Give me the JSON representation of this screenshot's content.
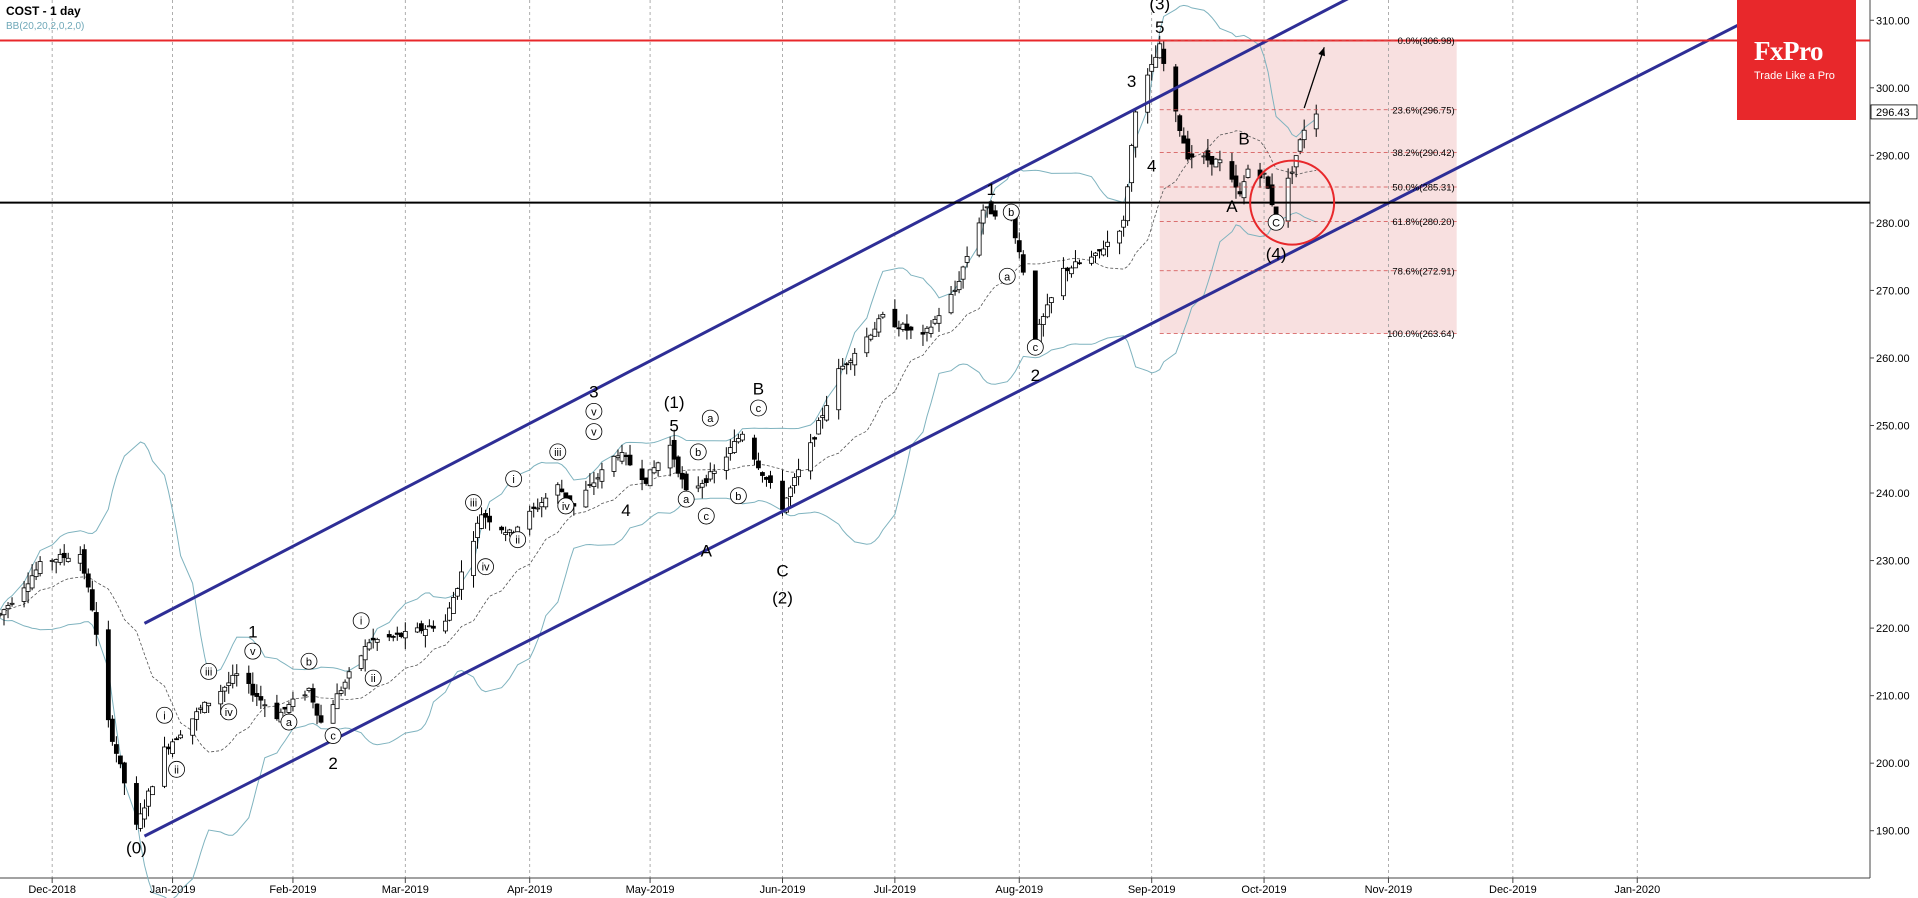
{
  "header": {
    "symbol_line": "COST  - 1 day",
    "indicator_line": "BB(20,20,2,0,2,0)"
  },
  "logo": {
    "name": "FxPro",
    "tagline": "Trade Like a Pro"
  },
  "colors": {
    "background": "#ffffff",
    "channel": "#2e2e96",
    "resistance": "#e8282b",
    "support": "#000000",
    "bollinger": "#7fb3bf",
    "fib_zone": "#f5d5d5",
    "fib_line": "#d04a4a",
    "candle_up": "#ffffff",
    "candle_down": "#000000",
    "arrow_up": "#1e8a1e",
    "arrow_down": "#c01818",
    "logo_bg": "#e8282b"
  },
  "chart_data": {
    "type": "candlestick",
    "symbol": "COST",
    "timeframe": "1 day",
    "ylim": [
      183,
      313
    ],
    "y_ticks": [
      190,
      200,
      210,
      220,
      230,
      240,
      250,
      260,
      270,
      280,
      290,
      300,
      310
    ],
    "y_tick_labels": [
      "190.00",
      "200.00",
      "210.00",
      "220.00",
      "230.00",
      "240.00",
      "250.00",
      "260.00",
      "270.00",
      "280.00",
      "290.00",
      "300.00",
      "310.00"
    ],
    "x_range": [
      "2018-11-20",
      "2020-02-29"
    ],
    "x_ticks": [
      {
        "label": "Dec-2018",
        "date": "2018-12-03"
      },
      {
        "label": "Jan-2019",
        "date": "2019-01-02"
      },
      {
        "label": "Feb-2019",
        "date": "2019-02-01"
      },
      {
        "label": "Mar-2019",
        "date": "2019-03-01"
      },
      {
        "label": "Apr-2019",
        "date": "2019-04-01"
      },
      {
        "label": "May-2019",
        "date": "2019-05-01"
      },
      {
        "label": "Jun-2019",
        "date": "2019-06-03"
      },
      {
        "label": "Jul-2019",
        "date": "2019-07-01"
      },
      {
        "label": "Aug-2019",
        "date": "2019-08-01"
      },
      {
        "label": "Sep-2019",
        "date": "2019-09-03"
      },
      {
        "label": "Oct-2019",
        "date": "2019-10-01"
      },
      {
        "label": "Nov-2019",
        "date": "2019-11-01"
      },
      {
        "label": "Dec-2019",
        "date": "2019-12-02"
      },
      {
        "label": "Jan-2020",
        "date": "2020-01-02"
      }
    ],
    "current_price": 296.43,
    "current_price_label": "296.43",
    "price_path": [
      {
        "date": "2018-11-20",
        "price": 222
      },
      {
        "date": "2018-12-01",
        "price": 230
      },
      {
        "date": "2018-12-10",
        "price": 231
      },
      {
        "date": "2018-12-13",
        "price": 223
      },
      {
        "date": "2018-12-17",
        "price": 206
      },
      {
        "date": "2018-12-24",
        "price": 190.5
      },
      {
        "date": "2018-12-31",
        "price": 202
      },
      {
        "date": "2019-01-09",
        "price": 208
      },
      {
        "date": "2019-01-18",
        "price": 213
      },
      {
        "date": "2019-01-28",
        "price": 207
      },
      {
        "date": "2019-02-05",
        "price": 211
      },
      {
        "date": "2019-02-08",
        "price": 206
      },
      {
        "date": "2019-02-14",
        "price": 212
      },
      {
        "date": "2019-02-20",
        "price": 218
      },
      {
        "date": "2019-03-01",
        "price": 219
      },
      {
        "date": "2019-03-11",
        "price": 221
      },
      {
        "date": "2019-03-20",
        "price": 237
      },
      {
        "date": "2019-03-27",
        "price": 234
      },
      {
        "date": "2019-04-08",
        "price": 241
      },
      {
        "date": "2019-04-12",
        "price": 238
      },
      {
        "date": "2019-04-23",
        "price": 246
      },
      {
        "date": "2019-04-30",
        "price": 242
      },
      {
        "date": "2019-05-06",
        "price": 247
      },
      {
        "date": "2019-05-10",
        "price": 240
      },
      {
        "date": "2019-05-17",
        "price": 243
      },
      {
        "date": "2019-05-24",
        "price": 249
      },
      {
        "date": "2019-05-29",
        "price": 243
      },
      {
        "date": "2019-06-03",
        "price": 238
      },
      {
        "date": "2019-06-10",
        "price": 247
      },
      {
        "date": "2019-06-17",
        "price": 258
      },
      {
        "date": "2019-06-28",
        "price": 266
      },
      {
        "date": "2019-07-08",
        "price": 263
      },
      {
        "date": "2019-07-16",
        "price": 270
      },
      {
        "date": "2019-07-23",
        "price": 282
      },
      {
        "date": "2019-07-30",
        "price": 281
      },
      {
        "date": "2019-08-02",
        "price": 273
      },
      {
        "date": "2019-08-05",
        "price": 263
      },
      {
        "date": "2019-08-12",
        "price": 273
      },
      {
        "date": "2019-08-20",
        "price": 275
      },
      {
        "date": "2019-08-27",
        "price": 280
      },
      {
        "date": "2019-08-30",
        "price": 297
      },
      {
        "date": "2019-09-05",
        "price": 306
      },
      {
        "date": "2019-09-09",
        "price": 296
      },
      {
        "date": "2019-09-12",
        "price": 290
      },
      {
        "date": "2019-09-20",
        "price": 289
      },
      {
        "date": "2019-09-25",
        "price": 284
      },
      {
        "date": "2019-09-27",
        "price": 288
      },
      {
        "date": "2019-10-01",
        "price": 287
      },
      {
        "date": "2019-10-04",
        "price": 281
      },
      {
        "date": "2019-10-08",
        "price": 288
      },
      {
        "date": "2019-10-11",
        "price": 294
      },
      {
        "date": "2019-10-14",
        "price": 296.43
      }
    ],
    "upward_channel": {
      "upper": [
        {
          "date": "2018-12-26",
          "price": 220.7
        },
        {
          "date": "2019-11-12",
          "price": 319.7
        }
      ],
      "lower": [
        {
          "date": "2018-12-26",
          "price": 189.2
        },
        {
          "date": "2020-02-20",
          "price": 316.5
        }
      ]
    },
    "resistance_level": 307,
    "support_level": 283,
    "fibonacci": {
      "from_date": "2019-09-05",
      "to_date": "2019-11-18",
      "levels": [
        {
          "ratio": "0.0%",
          "price": 306.98,
          "label": "0.0%(306.98)"
        },
        {
          "ratio": "23.6%",
          "price": 296.75,
          "label": "23.6%(296.75)"
        },
        {
          "ratio": "38.2%",
          "price": 290.42,
          "label": "38.2%(290.42)"
        },
        {
          "ratio": "50.0%",
          "price": 285.31,
          "label": "50.0%(285.31)"
        },
        {
          "ratio": "61.8%",
          "price": 280.2,
          "label": "61.8%(280.20)"
        },
        {
          "ratio": "78.6%",
          "price": 272.91,
          "label": "78.6%(272.91)"
        },
        {
          "ratio": "100.0%",
          "price": 263.64,
          "label": "100.0%(263.64)"
        }
      ]
    },
    "projection_arrow": {
      "from": {
        "date": "2019-10-11",
        "price": 297
      },
      "to": {
        "date": "2019-10-16",
        "price": 306
      }
    },
    "highlight_circle": {
      "date": "2019-10-08",
      "price": 283
    },
    "wave_labels": [
      {
        "text": "(0)",
        "date": "2018-12-24",
        "price": 187.5
      },
      {
        "text": "i",
        "circled": true,
        "date": "2018-12-31",
        "price": 206.5
      },
      {
        "text": "ii",
        "circled": true,
        "date": "2019-01-03",
        "price": 198.5
      },
      {
        "text": "iii",
        "circled": true,
        "date": "2019-01-11",
        "price": 213
      },
      {
        "text": "iv",
        "circled": true,
        "date": "2019-01-16",
        "price": 207
      },
      {
        "text": "v",
        "circled": true,
        "date": "2019-01-22",
        "price": 216
      },
      {
        "text": "1",
        "date": "2019-01-22",
        "price": 219.5
      },
      {
        "text": "a",
        "circled": true,
        "date": "2019-01-31",
        "price": 205.5
      },
      {
        "text": "b",
        "circled": true,
        "date": "2019-02-05",
        "price": 214.5
      },
      {
        "text": "c",
        "circled": true,
        "date": "2019-02-11",
        "price": 203.5
      },
      {
        "text": "2",
        "date": "2019-02-11",
        "price": 200
      },
      {
        "text": "i",
        "circled": true,
        "date": "2019-02-18",
        "price": 220.5
      },
      {
        "text": "ii",
        "circled": true,
        "date": "2019-02-21",
        "price": 212
      },
      {
        "text": "iii",
        "circled": true,
        "date": "2019-03-18",
        "price": 238
      },
      {
        "text": "iv",
        "circled": true,
        "date": "2019-03-21",
        "price": 228.5
      },
      {
        "text": "i",
        "circled": true,
        "date": "2019-03-28",
        "price": 241.5
      },
      {
        "text": "ii",
        "circled": true,
        "date": "2019-03-29",
        "price": 232.5
      },
      {
        "text": "iii",
        "circled": true,
        "date": "2019-04-08",
        "price": 245.5
      },
      {
        "text": "iv",
        "circled": true,
        "date": "2019-04-10",
        "price": 237.5
      },
      {
        "text": "v",
        "circled": true,
        "date": "2019-04-17",
        "price": 248.5
      },
      {
        "text": "v",
        "circled": true,
        "date": "2019-04-17",
        "price": 251.5
      },
      {
        "text": "3",
        "date": "2019-04-17",
        "price": 255
      },
      {
        "text": "4",
        "date": "2019-04-25",
        "price": 237.5
      },
      {
        "text": "5",
        "date": "2019-05-07",
        "price": 250
      },
      {
        "text": "(1)",
        "date": "2019-05-07",
        "price": 253.5
      },
      {
        "text": "a",
        "circled": true,
        "date": "2019-05-10",
        "price": 238.5
      },
      {
        "text": "b",
        "circled": true,
        "date": "2019-05-13",
        "price": 245.5
      },
      {
        "text": "c",
        "circled": true,
        "date": "2019-05-15",
        "price": 236
      },
      {
        "text": "a",
        "circled": true,
        "date": "2019-05-16",
        "price": 250.5
      },
      {
        "text": "b",
        "circled": true,
        "date": "2019-05-23",
        "price": 239
      },
      {
        "text": "c",
        "circled": true,
        "date": "2019-05-28",
        "price": 252
      },
      {
        "text": "B",
        "date": "2019-05-28",
        "price": 255.5
      },
      {
        "text": "A",
        "date": "2019-05-15",
        "price": 231.5
      },
      {
        "text": "C",
        "date": "2019-06-03",
        "price": 228.5
      },
      {
        "text": "(2)",
        "date": "2019-06-03",
        "price": 224.5
      },
      {
        "text": "1",
        "date": "2019-07-25",
        "price": 285
      },
      {
        "text": "b",
        "circled": true,
        "date": "2019-07-30",
        "price": 281
      },
      {
        "text": "a",
        "circled": true,
        "date": "2019-07-29",
        "price": 271.5
      },
      {
        "text": "c",
        "circled": true,
        "date": "2019-08-05",
        "price": 261
      },
      {
        "text": "2",
        "date": "2019-08-05",
        "price": 257.5
      },
      {
        "text": "3",
        "date": "2019-08-29",
        "price": 301
      },
      {
        "text": "4",
        "date": "2019-09-03",
        "price": 288.5
      },
      {
        "text": "5",
        "date": "2019-09-05",
        "price": 309
      },
      {
        "text": "(3)",
        "date": "2019-09-05",
        "price": 312.5
      },
      {
        "text": "A",
        "date": "2019-09-23",
        "price": 282.5
      },
      {
        "text": "B",
        "date": "2019-09-26",
        "price": 292.5
      },
      {
        "text": "C",
        "circled": true,
        "date": "2019-10-04",
        "price": 279.5
      },
      {
        "text": "(4)",
        "date": "2019-10-04",
        "price": 275.5
      }
    ]
  }
}
